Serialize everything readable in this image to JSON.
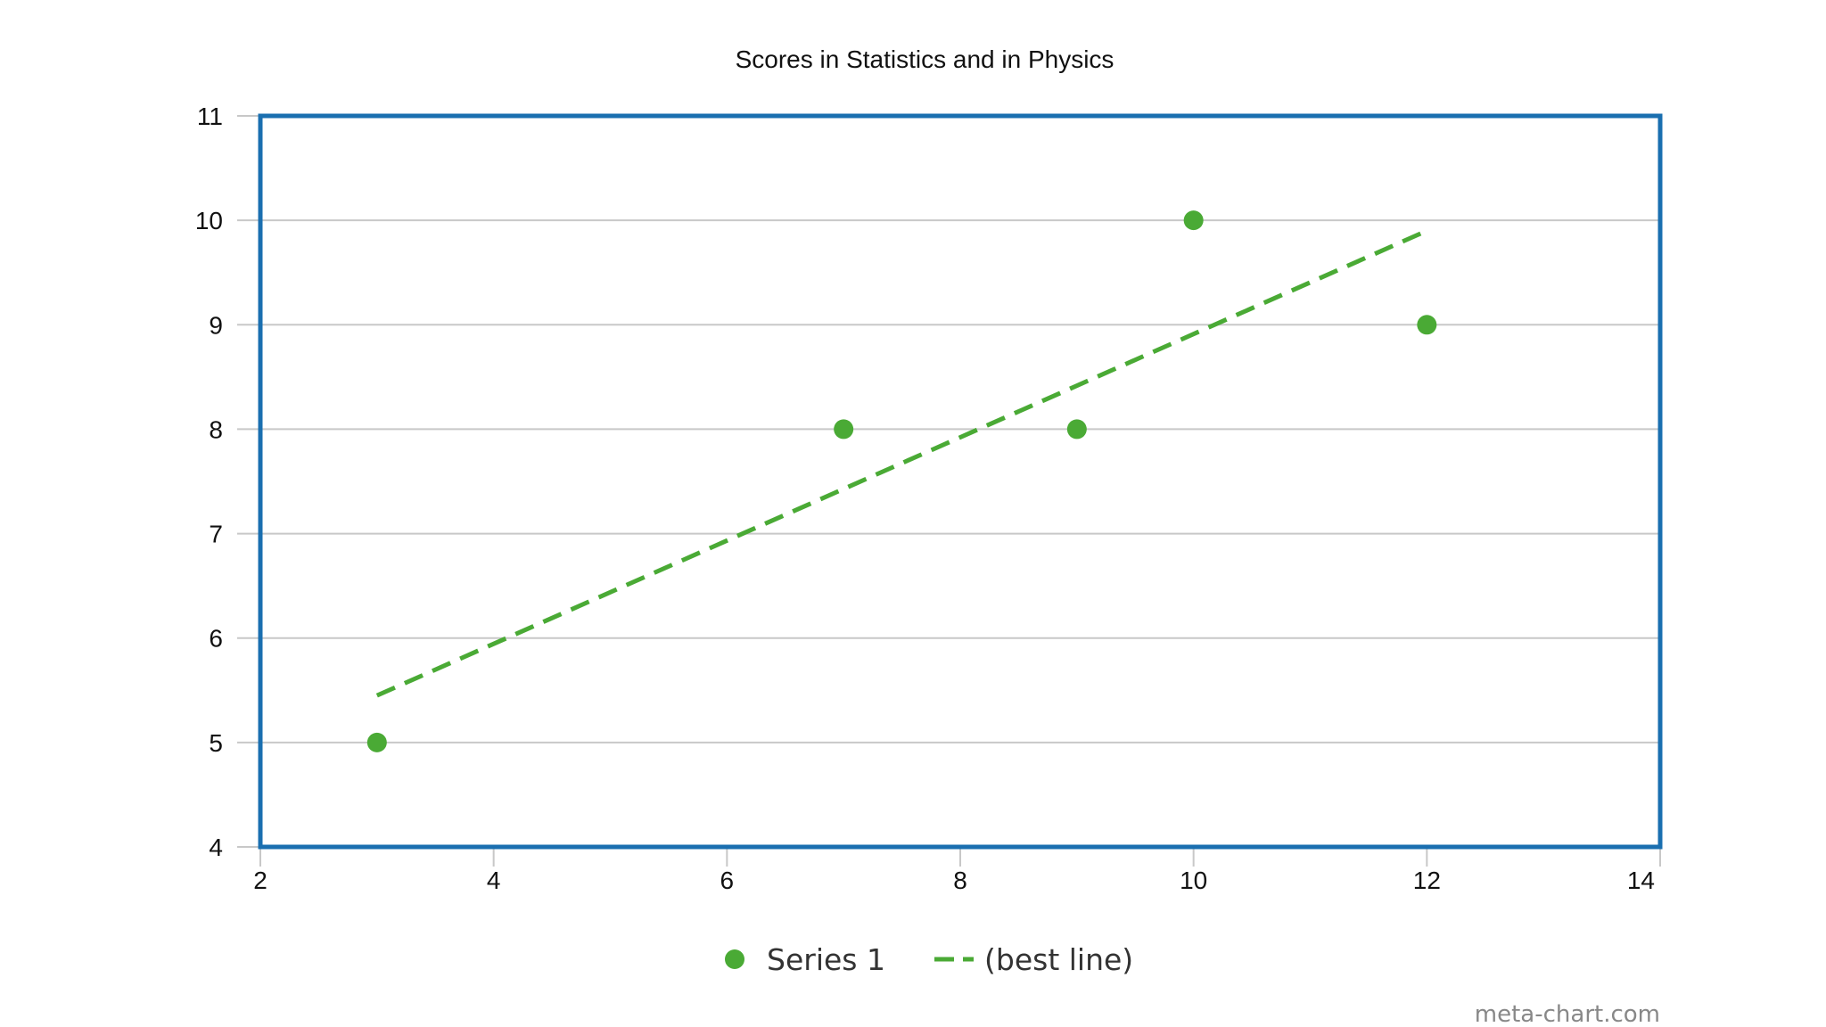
{
  "chart_data": {
    "type": "scatter",
    "title": "Scores in Statistics and in Physics",
    "xlabel": "",
    "ylabel": "",
    "xlim": [
      2,
      14
    ],
    "ylim": [
      4,
      11
    ],
    "x_ticks": [
      "2",
      "4",
      "6",
      "8",
      "10",
      "12",
      "14"
    ],
    "y_ticks": [
      "4",
      "5",
      "6",
      "7",
      "8",
      "9",
      "10",
      "11"
    ],
    "grid": "horizontal",
    "legend_placement": "bottom-center",
    "series": [
      {
        "name": "Series 1",
        "kind": "scatter",
        "color": "#4aaa35",
        "points": [
          {
            "x": 3,
            "y": 5
          },
          {
            "x": 7,
            "y": 8
          },
          {
            "x": 9,
            "y": 8
          },
          {
            "x": 10,
            "y": 10
          },
          {
            "x": 12,
            "y": 9
          }
        ]
      },
      {
        "name": "(best line)",
        "kind": "trendline",
        "color": "#4aaa35",
        "points": [
          {
            "x": 3,
            "y": 5.45
          },
          {
            "x": 12,
            "y": 9.9
          }
        ]
      }
    ]
  },
  "colors": {
    "frame": "#1a6fb0",
    "grid": "#c8c8c8",
    "series": "#4aaa35"
  },
  "watermark": "meta-chart.com"
}
